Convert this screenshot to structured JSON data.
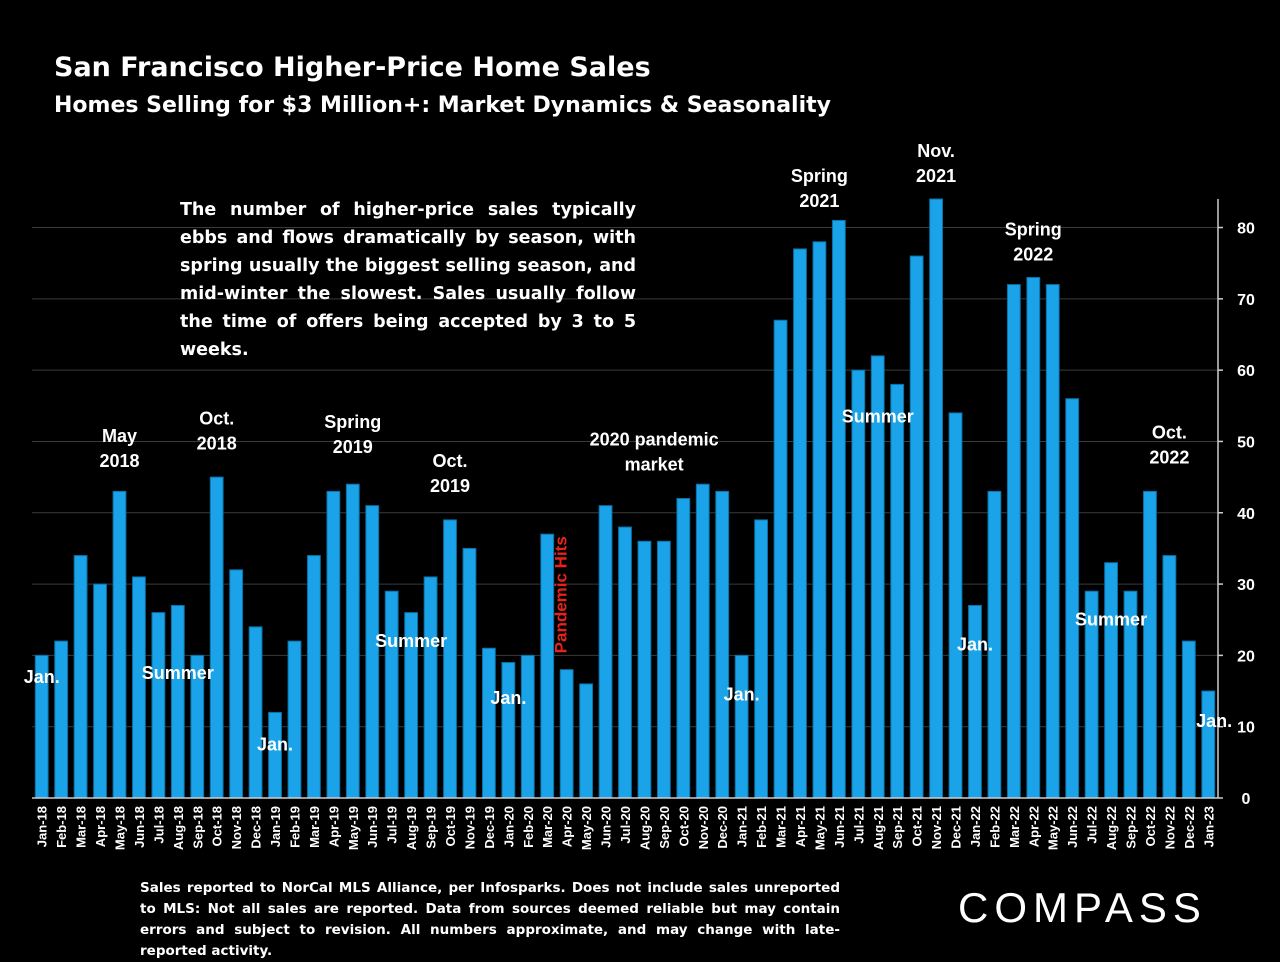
{
  "header": {
    "title": "San Francisco Higher-Price Home Sales",
    "subtitle": "Homes Selling for  $3 Million+: Market Dynamics & Seasonality"
  },
  "callout_text": "The number of higher-price sales typically ebbs and flows dramatically by season, with spring usually the biggest selling season, and mid-winter the slowest. Sales usually follow the time of offers being accepted by 3 to 5 weeks.",
  "footnote": "Sales reported to NorCal MLS Alliance, per Infosparks. Does not include sales unreported to MLS: Not all sales are reported. Data from sources deemed reliable but may contain errors and subject to revision.  All numbers approximate, and may change with late-reported activity.",
  "logo_text": "COMPASS",
  "colors": {
    "background": "#000000",
    "bar": "#1aa3e8",
    "bar_edge": "#0a6fa5",
    "highlight": "#e8221a",
    "text": "#ffffff"
  },
  "chart_data": {
    "type": "bar",
    "categories": [
      "Jan-18",
      "Feb-18",
      "Mar-18",
      "Apr-18",
      "May-18",
      "Jun-18",
      "Jul-18",
      "Aug-18",
      "Sep-18",
      "Oct-18",
      "Nov-18",
      "Dec-18",
      "Jan-19",
      "Feb-19",
      "Mar-19",
      "Apr-19",
      "May-19",
      "Jun-19",
      "Jul-19",
      "Aug-19",
      "Sep-19",
      "Oct-19",
      "Nov-19",
      "Dec-19",
      "Jan-20",
      "Feb-20",
      "Mar-20",
      "Apr-20",
      "May-20",
      "Jun-20",
      "Jul-20",
      "Aug-20",
      "Sep-20",
      "Oct-20",
      "Nov-20",
      "Dec-20",
      "Jan-21",
      "Feb-21",
      "Mar-21",
      "Apr-21",
      "May-21",
      "Jun-21",
      "Jul-21",
      "Aug-21",
      "Sep-21",
      "Oct-21",
      "Nov-21",
      "Dec-21",
      "Jan-22",
      "Feb-22",
      "Mar-22",
      "Apr-22",
      "May-22",
      "Jun-22",
      "Jul-22",
      "Aug-22",
      "Sep-22",
      "Oct-22",
      "Nov-22",
      "Dec-22",
      "Jan-23"
    ],
    "values": [
      20,
      22,
      34,
      30,
      43,
      31,
      26,
      27,
      20,
      45,
      32,
      24,
      12,
      22,
      34,
      43,
      44,
      41,
      29,
      26,
      31,
      39,
      35,
      21,
      19,
      20,
      37,
      18,
      16,
      41,
      38,
      36,
      36,
      42,
      44,
      43,
      20,
      39,
      67,
      77,
      78,
      81,
      60,
      62,
      58,
      76,
      84,
      54,
      27,
      43,
      72,
      73,
      72,
      56,
      29,
      33,
      29,
      43,
      34,
      22,
      15
    ],
    "ylim": [
      0,
      84
    ],
    "yticks": [
      0,
      10,
      20,
      30,
      40,
      50,
      60,
      70,
      80
    ],
    "axis_side": "right",
    "grid": true,
    "annotations": [
      {
        "lines": [
          "Jan."
        ],
        "at": 0,
        "value": 17,
        "style": "label"
      },
      {
        "lines": [
          "May",
          "2018"
        ],
        "at": 4,
        "value": 49,
        "style": "label"
      },
      {
        "lines": [
          "Summer"
        ],
        "at": 7,
        "value": 17.5,
        "style": "label"
      },
      {
        "lines": [
          "Oct.",
          "2018"
        ],
        "at": 9,
        "value": 51.5,
        "style": "label"
      },
      {
        "lines": [
          "Jan."
        ],
        "at": 12,
        "value": 7.5,
        "style": "label"
      },
      {
        "lines": [
          "Spring",
          "2019"
        ],
        "at": 16,
        "value": 51,
        "style": "label"
      },
      {
        "lines": [
          "Summer"
        ],
        "at": 19,
        "value": 22,
        "style": "label"
      },
      {
        "lines": [
          "Oct.",
          "2019"
        ],
        "at": 21,
        "value": 45.5,
        "style": "label"
      },
      {
        "lines": [
          "Jan."
        ],
        "at": 24,
        "value": 14,
        "style": "label"
      },
      {
        "lines": [
          "Pandemic Hits"
        ],
        "at": 27,
        "value": 28.5,
        "style": "vertical"
      },
      {
        "lines": [
          "2020 pandemic",
          "market"
        ],
        "at": 31.5,
        "value": 48.5,
        "style": "label"
      },
      {
        "lines": [
          "Jan."
        ],
        "at": 36,
        "value": 14.5,
        "style": "label"
      },
      {
        "lines": [
          "Spring",
          "2021"
        ],
        "at": 40,
        "value": 85.5,
        "style": "label"
      },
      {
        "lines": [
          "Summer"
        ],
        "at": 43,
        "value": 53.5,
        "style": "label"
      },
      {
        "lines": [
          "Nov.",
          "2021"
        ],
        "at": 46,
        "value": 89,
        "style": "label"
      },
      {
        "lines": [
          "Jan."
        ],
        "at": 48,
        "value": 21.5,
        "style": "label"
      },
      {
        "lines": [
          "Spring",
          "2022"
        ],
        "at": 51,
        "value": 78,
        "style": "label"
      },
      {
        "lines": [
          "Summer"
        ],
        "at": 55,
        "value": 25,
        "style": "label"
      },
      {
        "lines": [
          "Oct.",
          "2022"
        ],
        "at": 58,
        "value": 49.5,
        "style": "label"
      },
      {
        "lines": [
          "Jan."
        ],
        "at": 60.3,
        "value": 10.8,
        "style": "label"
      }
    ]
  }
}
